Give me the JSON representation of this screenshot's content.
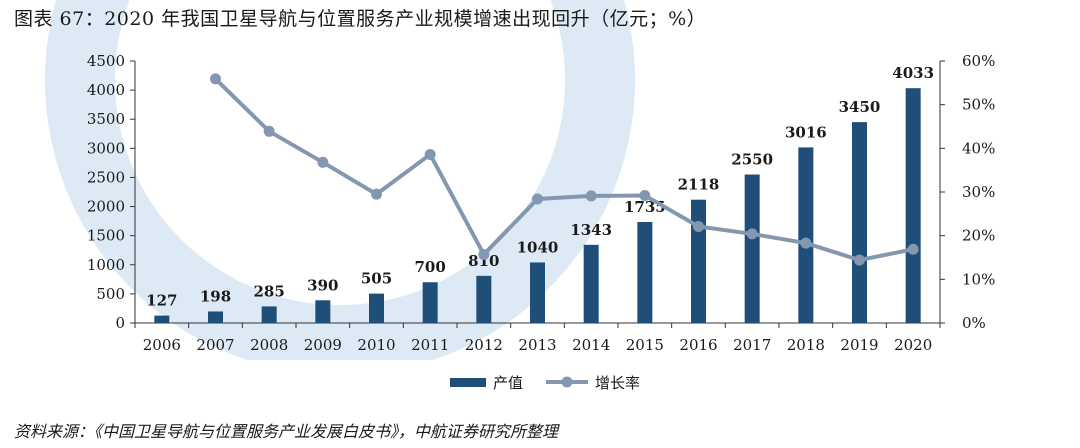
{
  "page": {
    "title": "图表 67：2020 年我国卫星导航与位置服务产业规模增速出现回升（亿元；%）",
    "source": "资料来源：《中国卫星导航与位置服务产业发展白皮书》，中航证券研究所整理"
  },
  "colors": {
    "bar": "#1f4e79",
    "line": "#8497b0",
    "watermark": "#9dc3e6"
  },
  "chart_data": {
    "type": "bar",
    "categories": [
      "2006",
      "2007",
      "2008",
      "2009",
      "2010",
      "2011",
      "2012",
      "2013",
      "2014",
      "2015",
      "2016",
      "2017",
      "2018",
      "2019",
      "2020"
    ],
    "series": [
      {
        "name": "产值",
        "type": "bar",
        "axis": "left",
        "values": [
          127,
          198,
          285,
          390,
          505,
          700,
          810,
          1040,
          1343,
          1735,
          2118,
          2550,
          3016,
          3450,
          4033
        ]
      },
      {
        "name": "增长率",
        "type": "line",
        "axis": "right",
        "values": [
          null,
          55.9,
          43.9,
          36.8,
          29.5,
          38.6,
          15.7,
          28.4,
          29.1,
          29.2,
          22.1,
          20.4,
          18.3,
          14.4,
          16.9
        ]
      }
    ],
    "ylim_left": [
      0,
      4500
    ],
    "ylim_right": [
      0,
      60
    ],
    "yticks_left": [
      "0",
      "500",
      "1000",
      "1500",
      "2000",
      "2500",
      "3000",
      "3500",
      "4000",
      "4500"
    ],
    "yticks_right": [
      "0%",
      "10%",
      "20%",
      "30%",
      "40%",
      "50%",
      "60%"
    ],
    "data_labels": [
      "127",
      "198",
      "285",
      "390",
      "505",
      "700",
      "810",
      "1040",
      "1343",
      "1735",
      "2118",
      "2550",
      "3016",
      "3450",
      "4033"
    ],
    "legend": [
      "产值",
      "增长率"
    ],
    "legend_position": "bottom",
    "grid": false
  }
}
